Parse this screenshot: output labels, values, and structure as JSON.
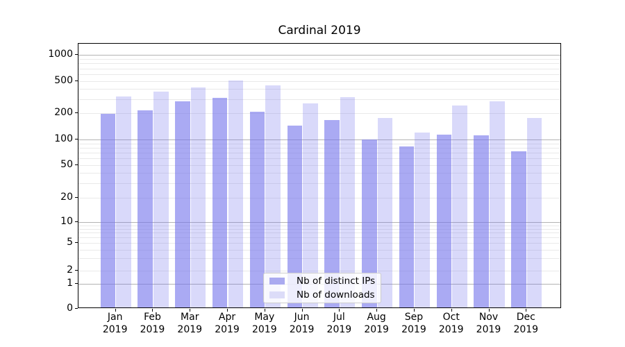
{
  "chart_data": {
    "type": "bar",
    "title": "Cardinal 2019",
    "months": [
      "Jan",
      "Feb",
      "Mar",
      "Apr",
      "May",
      "Jun",
      "Jul",
      "Aug",
      "Sep",
      "Oct",
      "Nov",
      "Dec"
    ],
    "year": "2019",
    "series": [
      {
        "name": "Nb of distinct IPs",
        "color": "#aaaaf0",
        "fill": "rgba(113,113,235,0.6)",
        "values": [
          190,
          210,
          270,
          300,
          200,
          140,
          160,
          97,
          80,
          110,
          108,
          70
        ]
      },
      {
        "name": "Nb of downloads",
        "color": "#dcdcf8",
        "fill": "rgba(113,113,235,0.27)",
        "values": [
          310,
          355,
          400,
          490,
          425,
          255,
          305,
          170,
          115,
          240,
          270,
          170
        ]
      }
    ],
    "y_ticks": [
      0,
      1,
      2,
      5,
      10,
      20,
      50,
      100,
      200,
      500,
      1000
    ],
    "y_scale": "symlog",
    "ylim": [
      0,
      1350
    ],
    "grid": true,
    "legend_position": "lower center",
    "colors": {
      "major_grid": "#b3b3b3",
      "minor_grid": "#e9e9e9",
      "spine": "#000000",
      "text": "#000000"
    }
  }
}
